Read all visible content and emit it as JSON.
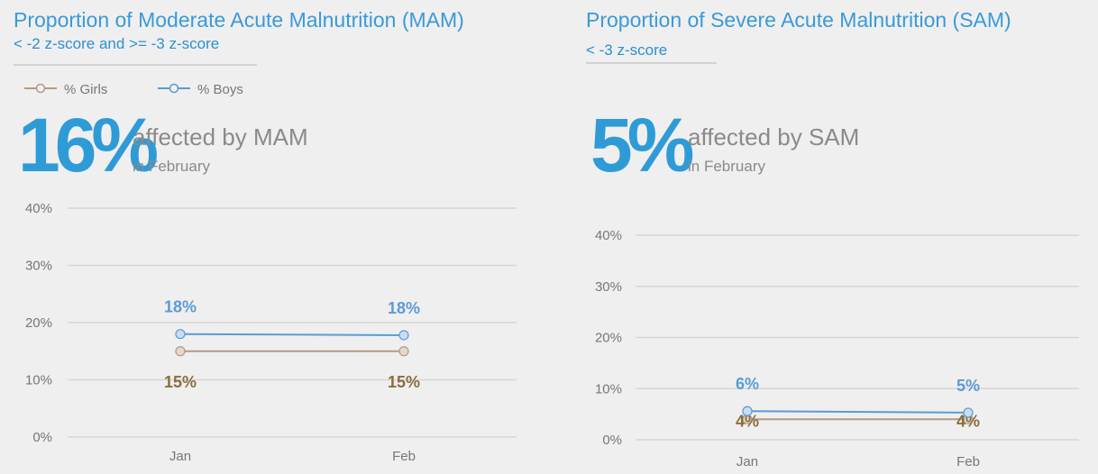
{
  "chart_data": [
    {
      "type": "line",
      "title": "Proportion of Moderate Acute Malnutrition (MAM)",
      "subtitle": "< -2 z-score and >= -3 z-score",
      "headline": "16%",
      "headline_text": "affected by MAM",
      "headline_sub": "in February",
      "legend": true,
      "categories": [
        "Jan",
        "Feb"
      ],
      "series": [
        {
          "name": "% Girls",
          "color": "#b39a85",
          "label_color": "#8b6d3f",
          "values": [
            15,
            15
          ],
          "value_labels": [
            "15%",
            "15%"
          ]
        },
        {
          "name": "% Boys",
          "color": "#5b9bd5",
          "label_color": "#5b9bd5",
          "values": [
            18,
            17.8
          ],
          "value_labels": [
            "18%",
            "18%"
          ]
        }
      ],
      "ylim": [
        0,
        40
      ],
      "yticks": [
        {
          "value": 0,
          "label": "0%"
        },
        {
          "value": 10,
          "label": "10%"
        },
        {
          "value": 20,
          "label": "20%"
        },
        {
          "value": 30,
          "label": "30%"
        },
        {
          "value": 40,
          "label": "40%"
        }
      ],
      "grid": true
    },
    {
      "type": "line",
      "title": "Proportion of Severe Acute Malnutrition (SAM)",
      "subtitle": "< -3 z-score",
      "headline": "5%",
      "headline_text": "affected by SAM",
      "headline_sub": "in February",
      "legend": false,
      "categories": [
        "Jan",
        "Feb"
      ],
      "series": [
        {
          "color": "#b39a85",
          "label_color": "#8b6d3f",
          "values": [
            4,
            4
          ],
          "value_labels": [
            "4%",
            "4%"
          ]
        },
        {
          "color": "#5b9bd5",
          "label_color": "#5b9bd5",
          "values": [
            5.6,
            5.3
          ],
          "value_labels": [
            "6%",
            "5%"
          ]
        }
      ],
      "ylim": [
        0,
        40
      ],
      "yticks": [
        {
          "value": 0,
          "label": "0%"
        },
        {
          "value": 10,
          "label": "10%"
        },
        {
          "value": 20,
          "label": "20%"
        },
        {
          "value": 30,
          "label": "30%"
        },
        {
          "value": 40,
          "label": "40%"
        }
      ],
      "grid": true
    }
  ]
}
